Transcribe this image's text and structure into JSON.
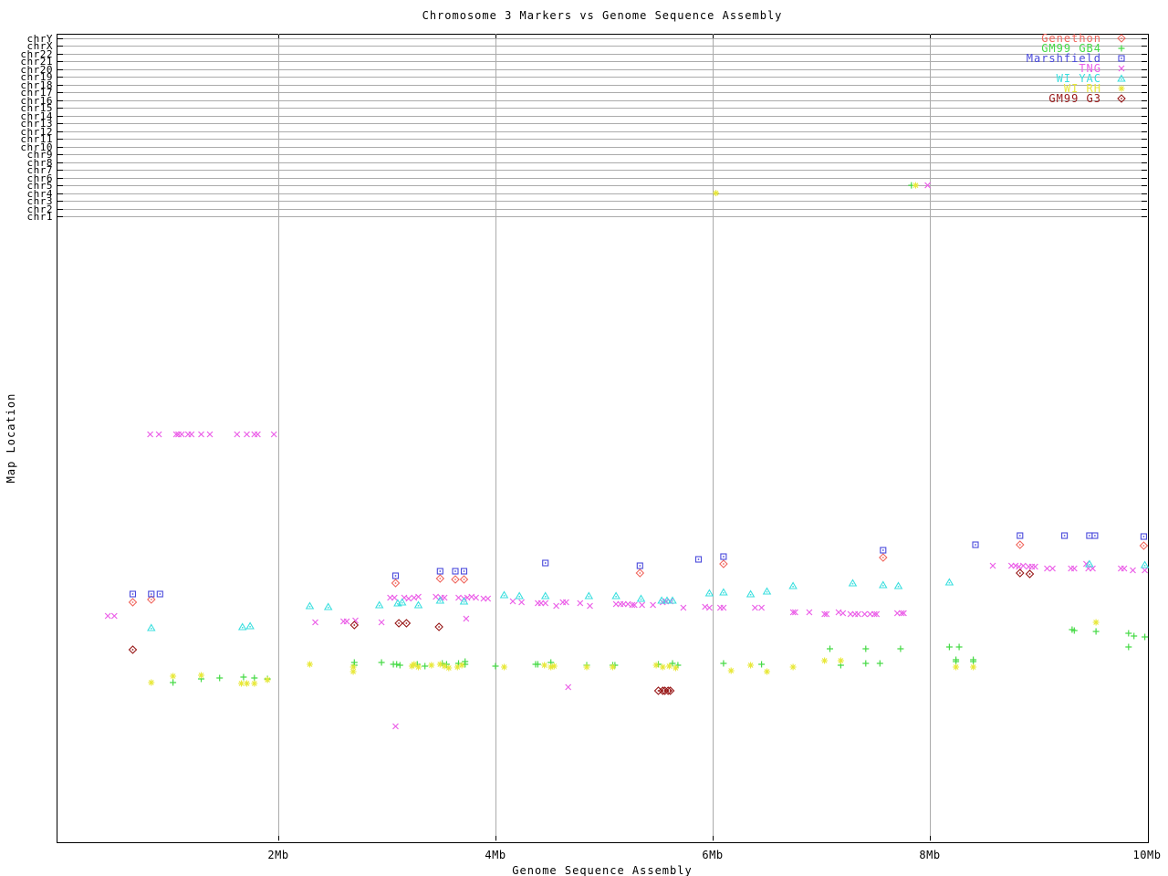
{
  "title": "Chromosome 3 Markers vs Genome Sequence Assembly",
  "chart_data": {
    "type": "scatter",
    "title": "Chromosome 3 Markers vs Genome Sequence Assembly",
    "x_axis": {
      "label": "Genome Sequence Assembly",
      "units": "Mb",
      "range": [
        0,
        10
      ],
      "ticks": [
        {
          "label": "2Mb",
          "mb": 2,
          "gridline": true
        },
        {
          "label": "4Mb",
          "mb": 4,
          "gridline": true
        },
        {
          "label": "6Mb",
          "mb": 6,
          "gridline": true
        },
        {
          "label": "8Mb",
          "mb": 8,
          "gridline": true
        },
        {
          "label": "10Mb",
          "mb": 10,
          "gridline": false
        }
      ]
    },
    "y_axis": {
      "label": "Map Location",
      "note": "Upper band lists chromosome rows chrY..chr1; lower scatter region has no numeric scale, y values given as screen pixels"
    },
    "legend_position": "top-right",
    "grid": true,
    "chromosomes": [
      "chrY",
      "chrX",
      "chr22",
      "chr21",
      "chr20",
      "chr19",
      "chr18",
      "chr17",
      "chr16",
      "chr15",
      "chr14",
      "chr13",
      "chr12",
      "chr11",
      "chr10",
      "chr9",
      "chr8",
      "chr7",
      "chr6",
      "chr5",
      "chr4",
      "chr3",
      "chr2",
      "chr1"
    ],
    "chromosome_row_points": [
      {
        "series": "WI RH",
        "chr": "chr4",
        "x_mb": 6.03
      },
      {
        "series": "GM99 GB4",
        "chr": "chr5",
        "x_mb": 7.83
      },
      {
        "series": "WI RH",
        "chr": "chr5",
        "x_mb": 7.87
      },
      {
        "series": "TNG",
        "chr": "chr5",
        "x_mb": 7.98
      }
    ],
    "series": [
      {
        "name": "Genethon",
        "marker": "diamond",
        "color": "#f0655c",
        "points": [
          [
            0.66,
            660
          ],
          [
            0.83,
            657
          ],
          [
            3.08,
            639
          ],
          [
            3.49,
            634
          ],
          [
            3.63,
            635
          ],
          [
            3.71,
            635
          ],
          [
            5.33,
            628
          ],
          [
            6.1,
            618
          ],
          [
            7.57,
            611
          ],
          [
            8.83,
            597
          ],
          [
            9.97,
            598
          ]
        ]
      },
      {
        "name": "GM99 GB4",
        "marker": "plus",
        "color": "#46da46",
        "points": [
          [
            1.03,
            748
          ],
          [
            1.29,
            744
          ],
          [
            1.46,
            743
          ],
          [
            1.68,
            742
          ],
          [
            1.78,
            743
          ],
          [
            1.9,
            744
          ],
          [
            2.7,
            726
          ],
          [
            2.7,
            729
          ],
          [
            2.95,
            726
          ],
          [
            3.06,
            728
          ],
          [
            3.09,
            728
          ],
          [
            3.12,
            729
          ],
          [
            3.28,
            728
          ],
          [
            3.35,
            730
          ],
          [
            3.51,
            727
          ],
          [
            3.55,
            728
          ],
          [
            3.66,
            727
          ],
          [
            3.72,
            725
          ],
          [
            3.72,
            728
          ],
          [
            4.0,
            730
          ],
          [
            4.37,
            728
          ],
          [
            4.39,
            728
          ],
          [
            4.51,
            726
          ],
          [
            4.84,
            729
          ],
          [
            5.08,
            729
          ],
          [
            5.1,
            729
          ],
          [
            5.5,
            728
          ],
          [
            5.63,
            727
          ],
          [
            5.68,
            729
          ],
          [
            6.1,
            727
          ],
          [
            6.45,
            728
          ],
          [
            7.08,
            711
          ],
          [
            7.18,
            729
          ],
          [
            7.41,
            711
          ],
          [
            7.41,
            727
          ],
          [
            7.54,
            727
          ],
          [
            7.73,
            711
          ],
          [
            8.18,
            709
          ],
          [
            8.27,
            709
          ],
          [
            8.24,
            723
          ],
          [
            8.24,
            725
          ],
          [
            8.4,
            723
          ],
          [
            8.4,
            725
          ],
          [
            9.31,
            690
          ],
          [
            9.33,
            691
          ],
          [
            9.53,
            692
          ],
          [
            9.83,
            694
          ],
          [
            9.88,
            697
          ],
          [
            9.98,
            698
          ],
          [
            9.83,
            709
          ]
        ]
      },
      {
        "name": "Marshfield",
        "marker": "square",
        "color": "#4949db",
        "points": [
          [
            0.66,
            651
          ],
          [
            0.83,
            651
          ],
          [
            0.91,
            651
          ],
          [
            3.08,
            631
          ],
          [
            3.49,
            626
          ],
          [
            3.63,
            626
          ],
          [
            3.71,
            626
          ],
          [
            4.46,
            617
          ],
          [
            5.33,
            620
          ],
          [
            5.87,
            613
          ],
          [
            6.1,
            610
          ],
          [
            7.57,
            603
          ],
          [
            8.42,
            597
          ],
          [
            8.83,
            587
          ],
          [
            9.24,
            587
          ],
          [
            9.47,
            587
          ],
          [
            9.52,
            587
          ],
          [
            9.97,
            588
          ]
        ]
      },
      {
        "name": "TNG",
        "marker": "cross",
        "color": "#eb5fe8",
        "points": [
          [
            0.82,
            476
          ],
          [
            0.9,
            476
          ],
          [
            1.06,
            476
          ],
          [
            1.08,
            476
          ],
          [
            1.11,
            476
          ],
          [
            1.17,
            476
          ],
          [
            1.2,
            476
          ],
          [
            1.29,
            476
          ],
          [
            1.37,
            476
          ],
          [
            1.62,
            476
          ],
          [
            1.71,
            476
          ],
          [
            1.78,
            476
          ],
          [
            1.81,
            476
          ],
          [
            1.96,
            476
          ],
          [
            0.43,
            675
          ],
          [
            0.49,
            675
          ],
          [
            2.34,
            682
          ],
          [
            2.6,
            681
          ],
          [
            2.63,
            681
          ],
          [
            2.71,
            680
          ],
          [
            2.95,
            682
          ],
          [
            3.03,
            655
          ],
          [
            3.07,
            655
          ],
          [
            3.16,
            655
          ],
          [
            3.2,
            656
          ],
          [
            3.25,
            655
          ],
          [
            3.29,
            654
          ],
          [
            3.45,
            654
          ],
          [
            3.5,
            655
          ],
          [
            3.53,
            655
          ],
          [
            3.66,
            655
          ],
          [
            3.71,
            656
          ],
          [
            3.74,
            655
          ],
          [
            3.78,
            654
          ],
          [
            3.82,
            655
          ],
          [
            3.89,
            656
          ],
          [
            3.93,
            656
          ],
          [
            3.73,
            678
          ],
          [
            3.08,
            796
          ],
          [
            4.67,
            753
          ],
          [
            4.16,
            659
          ],
          [
            4.24,
            660
          ],
          [
            4.39,
            661
          ],
          [
            4.42,
            661
          ],
          [
            4.46,
            661
          ],
          [
            4.56,
            664
          ],
          [
            4.62,
            660
          ],
          [
            4.65,
            660
          ],
          [
            4.78,
            661
          ],
          [
            4.87,
            664
          ],
          [
            5.11,
            662
          ],
          [
            5.15,
            662
          ],
          [
            5.18,
            662
          ],
          [
            5.22,
            662
          ],
          [
            5.26,
            663
          ],
          [
            5.28,
            663
          ],
          [
            5.35,
            663
          ],
          [
            5.45,
            663
          ],
          [
            5.54,
            660
          ],
          [
            5.57,
            659
          ],
          [
            5.61,
            659
          ],
          [
            5.73,
            666
          ],
          [
            5.93,
            665
          ],
          [
            5.97,
            666
          ],
          [
            6.07,
            666
          ],
          [
            6.1,
            666
          ],
          [
            6.39,
            666
          ],
          [
            6.45,
            666
          ],
          [
            6.74,
            671
          ],
          [
            6.76,
            671
          ],
          [
            6.89,
            671
          ],
          [
            7.03,
            673
          ],
          [
            7.05,
            673
          ],
          [
            7.16,
            671
          ],
          [
            7.2,
            672
          ],
          [
            7.27,
            673
          ],
          [
            7.31,
            673
          ],
          [
            7.34,
            673
          ],
          [
            7.4,
            673
          ],
          [
            7.45,
            673
          ],
          [
            7.49,
            673
          ],
          [
            7.51,
            673
          ],
          [
            7.7,
            672
          ],
          [
            7.74,
            672
          ],
          [
            7.76,
            672
          ],
          [
            8.58,
            620
          ],
          [
            8.75,
            620
          ],
          [
            8.79,
            620
          ],
          [
            8.82,
            621
          ],
          [
            8.86,
            620
          ],
          [
            8.91,
            621
          ],
          [
            8.94,
            621
          ],
          [
            8.97,
            621
          ],
          [
            9.08,
            623
          ],
          [
            9.13,
            623
          ],
          [
            9.3,
            623
          ],
          [
            9.33,
            623
          ],
          [
            9.44,
            618
          ],
          [
            9.46,
            623
          ],
          [
            9.5,
            623
          ],
          [
            9.76,
            623
          ],
          [
            9.79,
            623
          ],
          [
            9.87,
            625
          ],
          [
            9.98,
            625
          ]
        ]
      },
      {
        "name": "WI YAC",
        "marker": "triangle",
        "color": "#3bdfdf",
        "points": [
          [
            0.83,
            688
          ],
          [
            1.67,
            687
          ],
          [
            1.74,
            686
          ],
          [
            2.29,
            664
          ],
          [
            2.46,
            665
          ],
          [
            2.93,
            663
          ],
          [
            3.1,
            661
          ],
          [
            3.14,
            660
          ],
          [
            3.29,
            663
          ],
          [
            3.49,
            658
          ],
          [
            3.71,
            659
          ],
          [
            4.08,
            652
          ],
          [
            4.22,
            653
          ],
          [
            4.46,
            653
          ],
          [
            4.86,
            653
          ],
          [
            5.11,
            653
          ],
          [
            5.34,
            656
          ],
          [
            5.53,
            658
          ],
          [
            5.58,
            658
          ],
          [
            5.63,
            658
          ],
          [
            5.97,
            650
          ],
          [
            6.1,
            649
          ],
          [
            6.35,
            651
          ],
          [
            6.5,
            648
          ],
          [
            6.74,
            642
          ],
          [
            7.29,
            639
          ],
          [
            7.57,
            641
          ],
          [
            7.71,
            642
          ],
          [
            8.18,
            638
          ],
          [
            9.47,
            618
          ],
          [
            9.98,
            619
          ]
        ]
      },
      {
        "name": "WI RH",
        "marker": "star",
        "color": "#e8e838",
        "points": [
          [
            0.83,
            748
          ],
          [
            1.03,
            741
          ],
          [
            1.29,
            740
          ],
          [
            1.66,
            749
          ],
          [
            1.71,
            749
          ],
          [
            1.78,
            749
          ],
          [
            1.9,
            745
          ],
          [
            2.29,
            728
          ],
          [
            2.69,
            731
          ],
          [
            2.69,
            736
          ],
          [
            3.23,
            730
          ],
          [
            3.25,
            728
          ],
          [
            3.29,
            731
          ],
          [
            3.41,
            729
          ],
          [
            3.49,
            728
          ],
          [
            3.53,
            730
          ],
          [
            3.57,
            732
          ],
          [
            3.65,
            731
          ],
          [
            3.69,
            729
          ],
          [
            4.08,
            731
          ],
          [
            4.45,
            729
          ],
          [
            4.51,
            731
          ],
          [
            4.54,
            730
          ],
          [
            4.84,
            731
          ],
          [
            5.08,
            731
          ],
          [
            5.48,
            729
          ],
          [
            5.54,
            731
          ],
          [
            5.6,
            730
          ],
          [
            5.66,
            732
          ],
          [
            6.17,
            735
          ],
          [
            6.35,
            729
          ],
          [
            6.5,
            736
          ],
          [
            6.74,
            731
          ],
          [
            7.03,
            724
          ],
          [
            7.18,
            724
          ],
          [
            8.24,
            731
          ],
          [
            8.4,
            731
          ],
          [
            9.53,
            682
          ]
        ]
      },
      {
        "name": "GM99 G3",
        "marker": "diamond",
        "color": "#971616",
        "points": [
          [
            0.66,
            712
          ],
          [
            2.7,
            685
          ],
          [
            3.11,
            683
          ],
          [
            3.18,
            683
          ],
          [
            3.48,
            687
          ],
          [
            5.5,
            757
          ],
          [
            5.54,
            757
          ],
          [
            5.56,
            757
          ],
          [
            5.59,
            757
          ],
          [
            5.61,
            757
          ],
          [
            8.83,
            628
          ],
          [
            8.92,
            629
          ]
        ]
      }
    ]
  }
}
